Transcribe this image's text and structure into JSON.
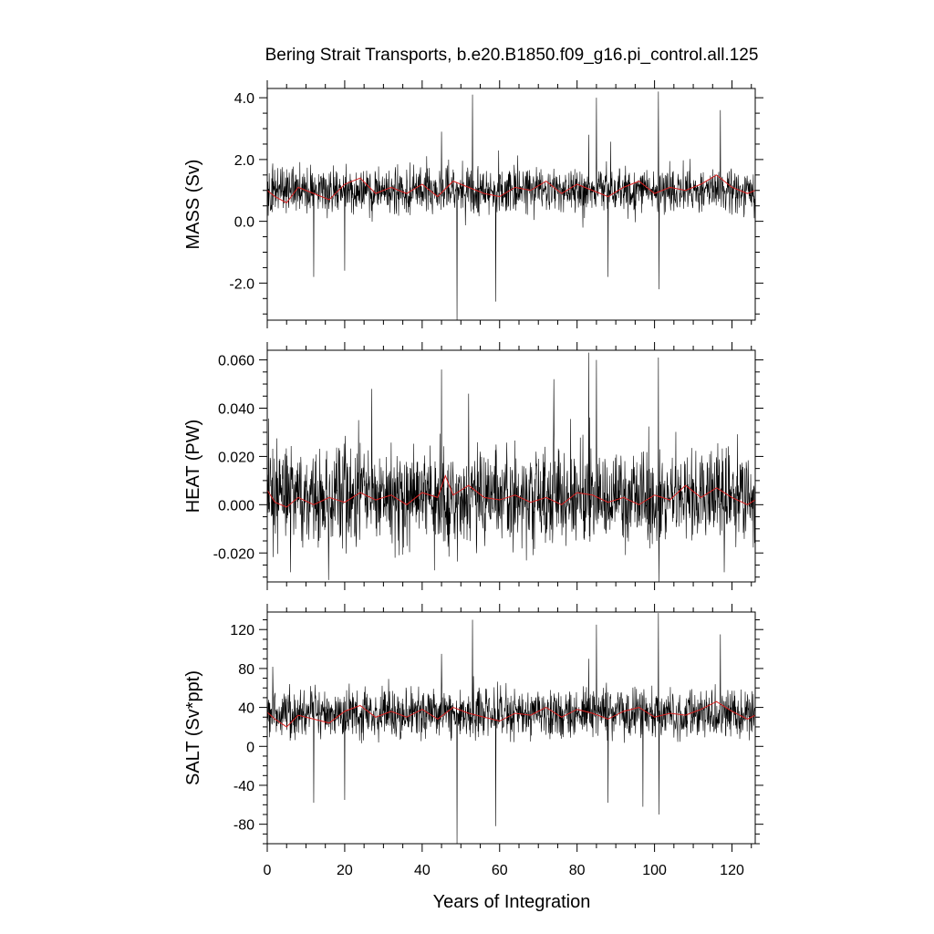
{
  "title": "Bering Strait Transports, b.e20.B1850.f09_g16.pi_control.all.125",
  "xlabel": "Years of Integration",
  "colors": {
    "raw": "#000000",
    "smooth": "#d92020",
    "axis": "#000000"
  },
  "chart_data": [
    {
      "type": "line",
      "ylabel": "MASS (Sv)",
      "xlim": [
        0,
        126
      ],
      "ylim": [
        -3.2,
        4.3
      ],
      "yticks": [
        -2.0,
        0.0,
        2.0,
        4.0
      ],
      "yticklabels": [
        "-2.0",
        "0.0",
        "2.0",
        "4.0"
      ],
      "xticks": [
        0,
        20,
        40,
        60,
        80,
        100,
        120
      ],
      "xticklabels": [
        "0",
        "20",
        "40",
        "60",
        "80",
        "100",
        "120"
      ],
      "show_xticklabels": false,
      "series": [
        {
          "kind": "monthly",
          "mean": 1.0,
          "spread": 0.45,
          "spikes": [
            [
              12,
              -1.8
            ],
            [
              20,
              -1.6
            ],
            [
              45,
              2.9
            ],
            [
              49,
              -3.2
            ],
            [
              53,
              4.1
            ],
            [
              59,
              -2.6
            ],
            [
              83,
              2.8
            ],
            [
              85,
              4.0
            ],
            [
              88,
              -1.8
            ],
            [
              101,
              4.2
            ],
            [
              101.2,
              -2.2
            ],
            [
              117,
              3.6
            ]
          ]
        },
        {
          "kind": "smooth",
          "mean": 1.0,
          "amp": 0.22,
          "points": [
            [
              0,
              1.0
            ],
            [
              2,
              0.8
            ],
            [
              5,
              0.6
            ],
            [
              8,
              1.1
            ],
            [
              12,
              0.9
            ],
            [
              16,
              0.7
            ],
            [
              20,
              1.2
            ],
            [
              24,
              1.4
            ],
            [
              28,
              0.9
            ],
            [
              32,
              1.1
            ],
            [
              36,
              0.9
            ],
            [
              40,
              1.2
            ],
            [
              44,
              0.8
            ],
            [
              48,
              1.3
            ],
            [
              52,
              1.1
            ],
            [
              56,
              0.9
            ],
            [
              60,
              0.8
            ],
            [
              64,
              1.1
            ],
            [
              68,
              1.0
            ],
            [
              72,
              1.3
            ],
            [
              76,
              0.9
            ],
            [
              80,
              1.2
            ],
            [
              84,
              1.0
            ],
            [
              88,
              0.8
            ],
            [
              92,
              1.1
            ],
            [
              96,
              1.3
            ],
            [
              100,
              0.9
            ],
            [
              104,
              1.1
            ],
            [
              108,
              1.0
            ],
            [
              112,
              1.2
            ],
            [
              116,
              1.5
            ],
            [
              120,
              1.1
            ],
            [
              124,
              0.9
            ],
            [
              126,
              1.0
            ]
          ]
        }
      ]
    },
    {
      "type": "line",
      "ylabel": "HEAT (PW)",
      "xlim": [
        0,
        126
      ],
      "ylim": [
        -0.032,
        0.064
      ],
      "yticks": [
        -0.02,
        0.0,
        0.02,
        0.04,
        0.06
      ],
      "yticklabels": [
        "-0.020",
        "0.000",
        "0.020",
        "0.040",
        "0.060"
      ],
      "xticks": [
        0,
        20,
        40,
        60,
        80,
        100,
        120
      ],
      "xticklabels": [
        "0",
        "20",
        "40",
        "60",
        "80",
        "100",
        "120"
      ],
      "show_xticklabels": false,
      "series": [
        {
          "kind": "monthly",
          "mean": 0.003,
          "spread": 0.012,
          "spikes": [
            [
              6,
              -0.028
            ],
            [
              27,
              0.048
            ],
            [
              45,
              0.056
            ],
            [
              52,
              0.046
            ],
            [
              74,
              0.052
            ],
            [
              83,
              0.063
            ],
            [
              85,
              0.06
            ],
            [
              101,
              0.061
            ],
            [
              101.2,
              -0.032
            ],
            [
              118,
              -0.028
            ],
            [
              33,
              -0.022
            ]
          ]
        },
        {
          "kind": "smooth",
          "mean": 0.002,
          "points": [
            [
              0,
              0.006
            ],
            [
              2,
              0.001
            ],
            [
              5,
              -0.001
            ],
            [
              8,
              0.003
            ],
            [
              12,
              0.0
            ],
            [
              16,
              0.003
            ],
            [
              20,
              0.001
            ],
            [
              24,
              0.005
            ],
            [
              28,
              0.002
            ],
            [
              32,
              0.004
            ],
            [
              36,
              0.0
            ],
            [
              40,
              0.005
            ],
            [
              44,
              0.003
            ],
            [
              46,
              0.012
            ],
            [
              48,
              0.004
            ],
            [
              52,
              0.008
            ],
            [
              56,
              0.003
            ],
            [
              60,
              0.002
            ],
            [
              64,
              0.004
            ],
            [
              68,
              0.001
            ],
            [
              72,
              0.003
            ],
            [
              76,
              0.0
            ],
            [
              80,
              0.005
            ],
            [
              84,
              0.004
            ],
            [
              88,
              0.001
            ],
            [
              92,
              0.003
            ],
            [
              96,
              0.0
            ],
            [
              100,
              0.004
            ],
            [
              104,
              0.002
            ],
            [
              108,
              0.008
            ],
            [
              112,
              0.003
            ],
            [
              116,
              0.007
            ],
            [
              120,
              0.003
            ],
            [
              124,
              0.0
            ],
            [
              126,
              0.002
            ]
          ]
        }
      ]
    },
    {
      "type": "line",
      "ylabel": "SALT (Sv*ppt)",
      "xlim": [
        0,
        126
      ],
      "ylim": [
        -100,
        138
      ],
      "yticks": [
        -80,
        -40,
        0,
        40,
        80,
        120
      ],
      "yticklabels": [
        "-80",
        "-40",
        "0",
        "40",
        "80",
        "120"
      ],
      "xticks": [
        0,
        20,
        40,
        60,
        80,
        100,
        120
      ],
      "xticklabels": [
        "0",
        "20",
        "40",
        "60",
        "80",
        "100",
        "120"
      ],
      "show_xticklabels": true,
      "series": [
        {
          "kind": "monthly",
          "mean": 33,
          "spread": 15,
          "spikes": [
            [
              12,
              -58
            ],
            [
              20,
              -55
            ],
            [
              45,
              95
            ],
            [
              49,
              -100
            ],
            [
              53,
              130
            ],
            [
              59,
              -82
            ],
            [
              83,
              90
            ],
            [
              85,
              125
            ],
            [
              88,
              -58
            ],
            [
              101,
              137
            ],
            [
              101.2,
              -70
            ],
            [
              97,
              -62
            ],
            [
              117,
              115
            ]
          ]
        },
        {
          "kind": "smooth",
          "mean": 33,
          "points": [
            [
              0,
              35
            ],
            [
              2,
              28
            ],
            [
              5,
              20
            ],
            [
              8,
              32
            ],
            [
              12,
              28
            ],
            [
              16,
              24
            ],
            [
              20,
              36
            ],
            [
              24,
              42
            ],
            [
              28,
              30
            ],
            [
              32,
              36
            ],
            [
              36,
              30
            ],
            [
              40,
              38
            ],
            [
              44,
              28
            ],
            [
              48,
              40
            ],
            [
              52,
              34
            ],
            [
              56,
              30
            ],
            [
              60,
              26
            ],
            [
              64,
              34
            ],
            [
              68,
              32
            ],
            [
              72,
              40
            ],
            [
              76,
              30
            ],
            [
              80,
              38
            ],
            [
              84,
              34
            ],
            [
              88,
              28
            ],
            [
              92,
              36
            ],
            [
              96,
              40
            ],
            [
              100,
              30
            ],
            [
              104,
              34
            ],
            [
              108,
              32
            ],
            [
              112,
              38
            ],
            [
              116,
              46
            ],
            [
              120,
              36
            ],
            [
              124,
              28
            ],
            [
              126,
              32
            ]
          ]
        }
      ]
    }
  ]
}
